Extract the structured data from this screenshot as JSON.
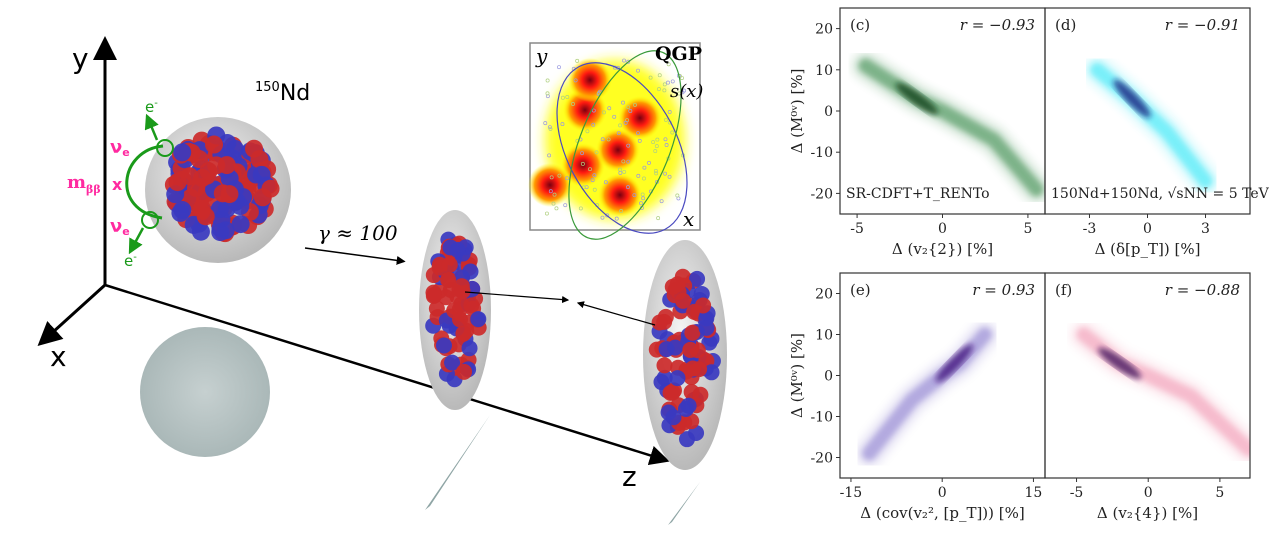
{
  "diagram": {
    "axis_labels": {
      "x": "x",
      "y": "y",
      "z": "z"
    },
    "nucleus_label": {
      "mass": "150",
      "element": "Nd"
    },
    "boost_label": "γ ≈ 100",
    "neutrino_labels": {
      "nu": "ν",
      "nu_sub": "e",
      "electron": "e",
      "electron_sup": "-",
      "mass": "m",
      "mass_sub": "ββ",
      "vertex": "x"
    },
    "inset": {
      "y_label": "y",
      "x_label": "x",
      "title": "QGP",
      "field_label": "s(x)"
    },
    "colors": {
      "proton": "#cc2a2a",
      "neutron": "#3a3ac0",
      "neutrino": "#1a9a1a",
      "mass": "#ff2aa0",
      "nucleus_shell": "#d0d0d0"
    }
  },
  "chart_data": [
    {
      "id": "c",
      "type": "heatmap",
      "panel_label": "(c)",
      "annotation": "r = −0.93",
      "corner_text": "SR-CDFT+T_RENTo",
      "xlabel": "Δ (v₂{2}) [%]",
      "ylabel": "Δ (M⁰ᵛ) [%]",
      "xlim": [
        -6,
        6
      ],
      "ylim": [
        -25,
        25
      ],
      "xticks": [
        -5,
        0,
        5
      ],
      "yticks": [
        20,
        10,
        0,
        -10,
        -20
      ],
      "color": "#1f7a32",
      "core_color": "#0b3d14",
      "density_ridge": [
        [
          -4.5,
          11
        ],
        [
          -1.5,
          3
        ],
        [
          0,
          0
        ],
        [
          3,
          -7
        ],
        [
          5.5,
          -19
        ]
      ],
      "density_peak": [
        -1.5,
        3
      ]
    },
    {
      "id": "d",
      "type": "heatmap",
      "panel_label": "(d)",
      "annotation": "r = −0.91",
      "corner_text": "150Nd+150Nd, √sNN = 5 TeV",
      "xlabel": "Δ (δ[p_T]) [%]",
      "ylabel": "",
      "xlim": [
        -5.3,
        5.3
      ],
      "ylim": [
        -25,
        25
      ],
      "xticks": [
        -3,
        0,
        3
      ],
      "yticks": [],
      "color": "#19e3f5",
      "core_color": "#15157a",
      "density_ridge": [
        [
          -2.6,
          10
        ],
        [
          -0.8,
          3
        ],
        [
          1,
          -5
        ],
        [
          3,
          -17
        ]
      ],
      "density_peak": [
        -0.8,
        3
      ]
    },
    {
      "id": "e",
      "type": "heatmap",
      "panel_label": "(e)",
      "annotation": "r = 0.93",
      "corner_text": "",
      "xlabel": "Δ (cov(v₂², [p_T])) [%]",
      "ylabel": "Δ (M⁰ᵛ) [%]",
      "xlim": [
        -16.8,
        16.9
      ],
      "ylim": [
        -25,
        25
      ],
      "xticks": [
        -15,
        0,
        15
      ],
      "yticks": [
        20,
        10,
        0,
        -10,
        -20
      ],
      "color": "#7a6ac8",
      "core_color": "#3d0f7a",
      "density_ridge": [
        [
          -12,
          -19
        ],
        [
          -5,
          -6
        ],
        [
          0,
          0
        ],
        [
          3,
          3
        ],
        [
          7,
          10
        ]
      ],
      "density_peak": [
        2,
        3
      ]
    },
    {
      "id": "f",
      "type": "heatmap",
      "panel_label": "(f)",
      "annotation": "r = −0.88",
      "corner_text": "",
      "xlabel": "Δ (v₂{4}) [%]",
      "ylabel": "",
      "xlim": [
        -7.2,
        7.1
      ],
      "ylim": [
        -25,
        25
      ],
      "xticks": [
        -5,
        0,
        5
      ],
      "yticks": [],
      "color": "#f08aa8",
      "core_color": "#3b0f5a",
      "density_ridge": [
        [
          -4.5,
          10
        ],
        [
          -2,
          3
        ],
        [
          0,
          0
        ],
        [
          3,
          -5
        ],
        [
          7,
          -18
        ]
      ],
      "density_peak": [
        -2,
        3
      ]
    }
  ]
}
